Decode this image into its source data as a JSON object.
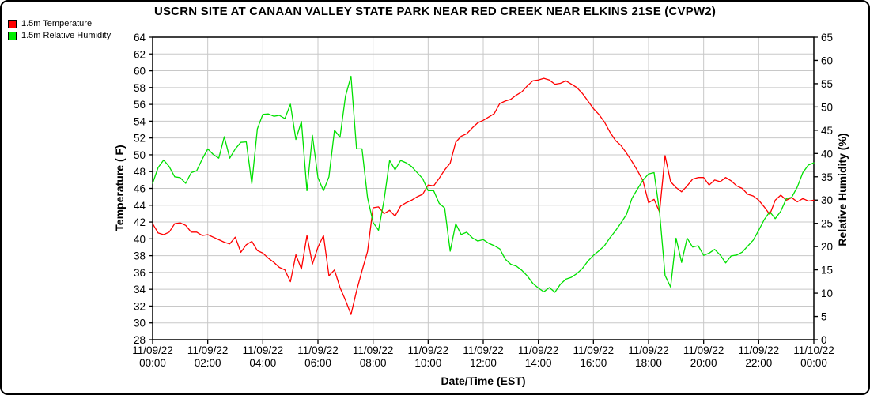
{
  "chart_data": {
    "type": "line",
    "title": "USCRN SITE AT CANAAN VALLEY STATE PARK NEAR RED CREEK NEAR ELKINS 21SE (CVPW2)",
    "xlabel": "Date/Time (EST)",
    "grid": true,
    "gridline_color": "#c8c8c8",
    "x": {
      "start_hour": 0,
      "step_hour": 0.2,
      "count": 121,
      "total_hours": 24
    },
    "x_tick_labels": [
      {
        "date": "11/09/22",
        "time": "00:00"
      },
      {
        "date": "11/09/22",
        "time": "02:00"
      },
      {
        "date": "11/09/22",
        "time": "04:00"
      },
      {
        "date": "11/09/22",
        "time": "06:00"
      },
      {
        "date": "11/09/22",
        "time": "08:00"
      },
      {
        "date": "11/09/22",
        "time": "10:00"
      },
      {
        "date": "11/09/22",
        "time": "12:00"
      },
      {
        "date": "11/09/22",
        "time": "14:00"
      },
      {
        "date": "11/09/22",
        "time": "16:00"
      },
      {
        "date": "11/09/22",
        "time": "18:00"
      },
      {
        "date": "11/09/22",
        "time": "20:00"
      },
      {
        "date": "11/09/22",
        "time": "22:00"
      },
      {
        "date": "11/10/22",
        "time": "00:00"
      }
    ],
    "left_axis": {
      "label": "Temperature ( F)",
      "min": 28,
      "max": 64,
      "tick_step": 2
    },
    "right_axis": {
      "label": "Relative Humidity (%)",
      "min": 0,
      "max": 65,
      "tick_step": 5
    },
    "series": [
      {
        "name": "1.5m Temperature",
        "axis": "left",
        "color": "#ff0000",
        "values": [
          41.8,
          40.7,
          40.5,
          40.8,
          41.8,
          41.9,
          41.6,
          40.8,
          40.8,
          40.4,
          40.5,
          40.2,
          39.9,
          39.6,
          39.4,
          40.2,
          38.4,
          39.3,
          39.7,
          38.6,
          38.3,
          37.7,
          37.2,
          36.6,
          36.3,
          34.9,
          38.1,
          36.4,
          40.4,
          37.0,
          39.0,
          40.4,
          35.6,
          36.3,
          34.2,
          32.7,
          31.0,
          33.8,
          36.2,
          38.5,
          43.7,
          43.8,
          43.0,
          43.4,
          42.7,
          43.9,
          44.3,
          44.6,
          45.0,
          45.3,
          46.4,
          46.3,
          47.2,
          48.2,
          49.0,
          51.5,
          52.2,
          52.5,
          53.2,
          53.8,
          54.1,
          54.5,
          54.9,
          56.1,
          56.4,
          56.6,
          57.1,
          57.5,
          58.2,
          58.8,
          58.9,
          59.1,
          58.9,
          58.4,
          58.5,
          58.8,
          58.4,
          58.0,
          57.3,
          56.4,
          55.5,
          54.8,
          53.9,
          52.7,
          51.7,
          51.1,
          50.2,
          49.2,
          48.1,
          46.9,
          44.3,
          44.7,
          43.2,
          49.9,
          46.8,
          46.1,
          45.6,
          46.3,
          47.1,
          47.3,
          47.3,
          46.4,
          47.0,
          46.8,
          47.3,
          46.9,
          46.3,
          46.0,
          45.3,
          45.1,
          44.6,
          43.8,
          42.9,
          44.6,
          45.2,
          44.6,
          44.9,
          44.4,
          44.8,
          44.5,
          44.6
        ]
      },
      {
        "name": "1.5m Relative Humidity",
        "axis": "right",
        "color": "#00e000",
        "values": [
          33.6,
          37.0,
          38.6,
          37.2,
          35.0,
          34.8,
          33.6,
          35.9,
          36.3,
          38.8,
          41.0,
          39.8,
          39.0,
          43.6,
          39.0,
          41.0,
          42.4,
          42.5,
          33.5,
          45.3,
          48.4,
          48.5,
          48.0,
          48.2,
          47.5,
          50.6,
          43.0,
          46.9,
          32.0,
          43.9,
          34.8,
          32.0,
          35.0,
          45.0,
          43.5,
          52.3,
          56.6,
          41.0,
          41.0,
          30.5,
          25.2,
          23.5,
          30.0,
          38.5,
          36.5,
          38.5,
          38.0,
          37.2,
          35.9,
          34.6,
          32.0,
          32.0,
          29.3,
          28.3,
          19.0,
          24.9,
          22.6,
          23.1,
          21.9,
          21.2,
          21.5,
          20.7,
          20.2,
          19.5,
          17.3,
          16.2,
          15.8,
          14.9,
          13.7,
          12.1,
          11.1,
          10.3,
          11.2,
          10.2,
          11.9,
          13.0,
          13.4,
          14.2,
          15.3,
          16.9,
          18.1,
          19.1,
          20.2,
          21.9,
          23.4,
          25.1,
          26.9,
          30.4,
          32.4,
          34.3,
          35.6,
          35.9,
          27.5,
          13.8,
          11.3,
          21.8,
          16.6,
          21.8,
          19.9,
          20.2,
          18.1,
          18.6,
          19.4,
          18.2,
          16.5,
          18.0,
          18.2,
          18.8,
          20.1,
          21.4,
          23.5,
          25.8,
          27.5,
          26.0,
          27.6,
          30.3,
          30.6,
          32.8,
          35.9,
          37.5,
          38.0
        ]
      }
    ]
  },
  "legend": {
    "items": [
      {
        "label": "1.5m Temperature",
        "color": "#ff0000"
      },
      {
        "label": "1.5m Relative Humidity",
        "color": "#00ee00"
      }
    ]
  }
}
